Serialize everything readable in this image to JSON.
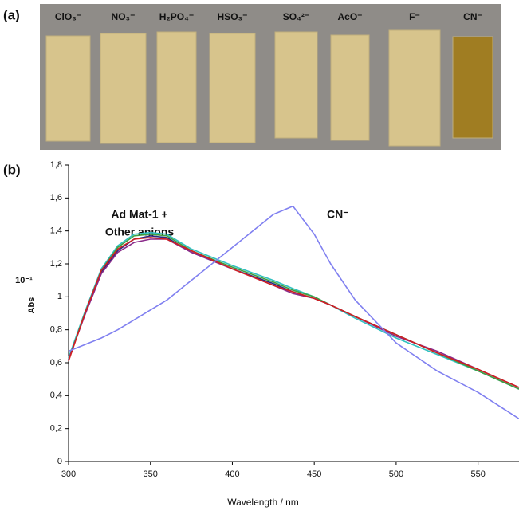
{
  "panel_a": {
    "label": "(a)",
    "strips": [
      "ClO₃⁻",
      "NO₃⁻",
      "H₂PO₄⁻",
      "HSO₃⁻",
      "SO₄²⁻",
      "AcO⁻",
      "F⁻",
      "CN⁻"
    ]
  },
  "chart_data": {
    "type": "line",
    "panel_label": "(b)",
    "x_label": "Wavelength / nm",
    "y_label": "Abs",
    "y_scale_label": "10⁻¹",
    "annotations": [
      "Ad Mat-1 +",
      "Other anions",
      "CN⁻"
    ],
    "x": [
      300,
      310,
      320,
      330,
      340,
      350,
      360,
      375,
      400,
      425,
      437,
      450,
      460,
      475,
      500,
      525,
      550,
      575
    ],
    "series": [
      {
        "color": "#2a2a80",
        "values": [
          0.62,
          0.9,
          1.15,
          1.28,
          1.35,
          1.37,
          1.36,
          1.27,
          1.17,
          1.08,
          1.03,
          0.99,
          0.95,
          0.88,
          0.77,
          0.66,
          0.55,
          0.44
        ]
      },
      {
        "color": "#30c0c0",
        "values": [
          0.63,
          0.91,
          1.17,
          1.31,
          1.38,
          1.39,
          1.38,
          1.29,
          1.19,
          1.1,
          1.05,
          1.0,
          0.95,
          0.87,
          0.75,
          0.65,
          0.55,
          0.44
        ]
      },
      {
        "color": "#40a040",
        "values": [
          0.62,
          0.9,
          1.16,
          1.3,
          1.37,
          1.38,
          1.37,
          1.28,
          1.18,
          1.09,
          1.04,
          1.0,
          0.95,
          0.88,
          0.77,
          0.66,
          0.55,
          0.44
        ]
      },
      {
        "color": "#8a2a8a",
        "values": [
          0.62,
          0.89,
          1.14,
          1.27,
          1.33,
          1.35,
          1.35,
          1.27,
          1.17,
          1.07,
          1.02,
          0.99,
          0.95,
          0.88,
          0.76,
          0.67,
          0.56,
          0.45
        ]
      },
      {
        "color": "#d02020",
        "values": [
          0.61,
          0.9,
          1.16,
          1.29,
          1.35,
          1.36,
          1.35,
          1.28,
          1.17,
          1.07,
          1.03,
          0.99,
          0.95,
          0.88,
          0.77,
          0.66,
          0.56,
          0.45
        ]
      },
      {
        "color": "#8080f0",
        "values": [
          0.67,
          0.71,
          0.75,
          0.8,
          0.86,
          0.92,
          0.98,
          1.1,
          1.3,
          1.5,
          1.55,
          1.38,
          1.2,
          0.98,
          0.72,
          0.55,
          0.42,
          0.26
        ]
      }
    ],
    "xlim": [
      300,
      575
    ],
    "xticks": [
      300,
      350,
      400,
      450,
      500,
      550
    ],
    "ylim": [
      0,
      1.8
    ],
    "yticks": [
      0,
      {
        "value": 0.2,
        "label": "0,2"
      },
      {
        "value": 0.4,
        "label": "0,4"
      },
      {
        "value": 0.6,
        "label": "0,6"
      },
      {
        "value": 0.8,
        "label": "0,8"
      },
      1,
      {
        "value": 1.2,
        "label": "1,2"
      },
      {
        "value": 1.4,
        "label": "1,4"
      },
      {
        "value": 1.6,
        "label": "1,6"
      },
      {
        "value": 1.8,
        "label": "1,8"
      }
    ],
    "grid": false
  }
}
